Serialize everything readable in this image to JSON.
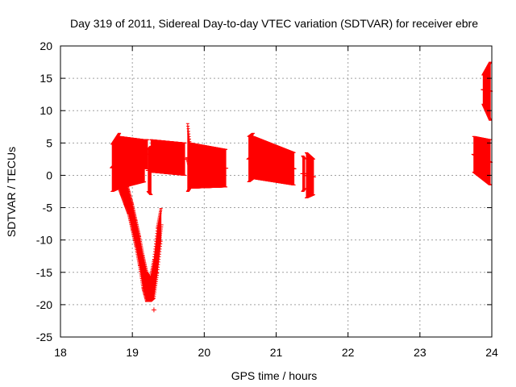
{
  "chart_data": {
    "type": "scatter",
    "title": "Day 319 of 2011, Sidereal Day-to-day VTEC variation (SDTVAR) for receiver ebre",
    "xlabel": "GPS time / hours",
    "ylabel": "SDTVAR / TECUs",
    "xlim": [
      18,
      24
    ],
    "ylim": [
      -25,
      20
    ],
    "x_ticks": [
      "18",
      "19",
      "20",
      "21",
      "22",
      "23",
      "24"
    ],
    "y_ticks": [
      "20",
      "15",
      "10",
      "5",
      "0",
      "-5",
      "-10",
      "-15",
      "-20",
      "-25"
    ],
    "grid": true,
    "legend": "none",
    "marker": "plus with vertical error bars",
    "series_color": "#ff0000",
    "segments": [
      {
        "x_start": 18.72,
        "x_end": 18.82,
        "y_low_start": -2.5,
        "y_low_end": -2.0,
        "y_high_start": 4.8,
        "y_high_end": 6.5
      },
      {
        "x_start": 18.82,
        "x_end": 19.17,
        "y_low_start": -2.0,
        "y_low_end": -1.0,
        "y_high_start": 6.0,
        "y_high_end": 5.5
      },
      {
        "x_start": 19.17,
        "x_end": 19.21,
        "y_low_start": 1.0,
        "y_low_end": 1.0,
        "y_high_start": 5.5,
        "y_high_end": 5.5
      },
      {
        "x_start": 19.22,
        "x_end": 19.26,
        "y_low_start": -2.5,
        "y_low_end": -3.0,
        "y_high_start": 4.0,
        "y_high_end": 4.5
      },
      {
        "x_start": 19.26,
        "x_end": 19.73,
        "y_low_start": 0.5,
        "y_low_end": 0.0,
        "y_high_start": 5.5,
        "y_high_end": 5.0
      },
      {
        "x_start": 19.77,
        "x_end": 19.8,
        "y_low_start": -2.5,
        "y_low_end": -2.0,
        "y_high_start": 8.0,
        "y_high_end": 5.0
      },
      {
        "x_start": 19.8,
        "x_end": 20.3,
        "y_low_start": -2.0,
        "y_low_end": -1.8,
        "y_high_start": 5.0,
        "y_high_end": 4.0
      },
      {
        "x_start": 20.62,
        "x_end": 20.68,
        "y_low_start": -1.0,
        "y_low_end": -0.5,
        "y_high_start": 6.0,
        "y_high_end": 6.5
      },
      {
        "x_start": 20.68,
        "x_end": 21.25,
        "y_low_start": -0.5,
        "y_low_end": -1.5,
        "y_high_start": 6.0,
        "y_high_end": 3.5
      },
      {
        "x_start": 21.37,
        "x_end": 21.4,
        "y_low_start": -2.5,
        "y_low_end": -2.0,
        "y_high_start": 3.0,
        "y_high_end": 2.5
      },
      {
        "x_start": 21.42,
        "x_end": 21.52,
        "y_low_start": -3.5,
        "y_low_end": -3.0,
        "y_high_start": 3.5,
        "y_high_end": 2.5
      },
      {
        "x_start": 23.75,
        "x_end": 23.98,
        "y_low_start": 0.5,
        "y_low_end": -1.5,
        "y_high_start": 6.0,
        "y_high_end": 5.5
      },
      {
        "x_start": 23.88,
        "x_end": 23.98,
        "y_low_start": 11.0,
        "y_low_end": 8.5,
        "y_high_start": 15.5,
        "y_high_end": 17.5
      }
    ],
    "dip_trace": [
      {
        "x": 18.8,
        "y_low": -1.5,
        "y_high": 3.0
      },
      {
        "x": 18.85,
        "y_low": -3.0,
        "y_high": 1.5
      },
      {
        "x": 18.9,
        "y_low": -4.5,
        "y_high": -0.5
      },
      {
        "x": 18.95,
        "y_low": -6.0,
        "y_high": -2.5
      },
      {
        "x": 19.0,
        "y_low": -8.5,
        "y_high": -4.5
      },
      {
        "x": 19.05,
        "y_low": -11.0,
        "y_high": -7.0
      },
      {
        "x": 19.1,
        "y_low": -14.0,
        "y_high": -9.5
      },
      {
        "x": 19.15,
        "y_low": -17.5,
        "y_high": -12.5
      },
      {
        "x": 19.2,
        "y_low": -19.5,
        "y_high": -15.0
      },
      {
        "x": 19.25,
        "y_low": -19.5,
        "y_high": -16.0
      },
      {
        "x": 19.3,
        "y_low": -19.0,
        "y_high": -13.0
      },
      {
        "x": 19.35,
        "y_low": -15.0,
        "y_high": -8.0
      },
      {
        "x": 19.4,
        "y_low": -10.0,
        "y_high": -5.0
      }
    ],
    "outliers": [
      {
        "x": 19.3,
        "y": -20.8
      }
    ]
  }
}
